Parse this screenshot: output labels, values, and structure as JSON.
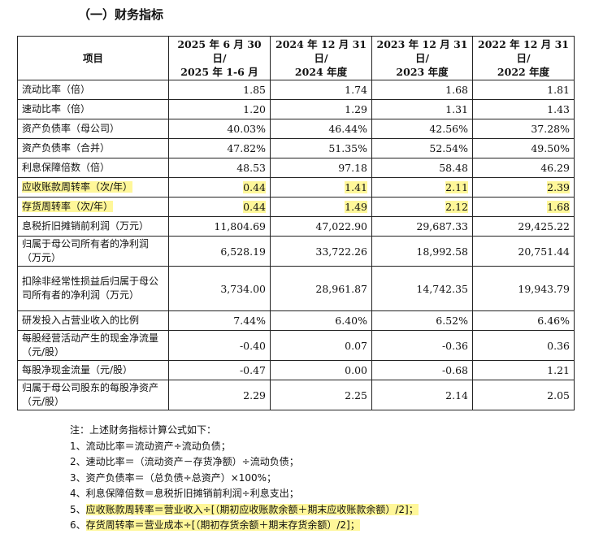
{
  "section_title": "（一）财务指标",
  "table": {
    "header": {
      "item": "项目",
      "periods": [
        {
          "line1": "2025 年 6 月 30 日/",
          "line2": "2025 年 1-6 月"
        },
        {
          "line1": "2024 年 12 月 31 日/",
          "line2": "2024 年度"
        },
        {
          "line1": "2023 年 12 月 31 日/",
          "line2": "2023 年度"
        },
        {
          "line1": "2022 年 12 月 31 日/",
          "line2": "2022 年度"
        }
      ]
    },
    "rows": [
      {
        "label": "流动比率（倍）",
        "values": [
          "1.85",
          "1.74",
          "1.68",
          "1.81"
        ],
        "highlight": false
      },
      {
        "label": "速动比率（倍）",
        "values": [
          "1.20",
          "1.29",
          "1.31",
          "1.43"
        ],
        "highlight": false
      },
      {
        "label": "资产负债率（母公司）",
        "values": [
          "40.03%",
          "46.44%",
          "42.56%",
          "37.28%"
        ],
        "highlight": false
      },
      {
        "label": "资产负债率（合并）",
        "values": [
          "47.82%",
          "51.35%",
          "52.54%",
          "49.50%"
        ],
        "highlight": false
      },
      {
        "label": "利息保障倍数（倍）",
        "values": [
          "48.53",
          "97.18",
          "58.48",
          "46.29"
        ],
        "highlight": false
      },
      {
        "label": "应收账款周转率（次/年）",
        "values": [
          "0.44",
          "1.41",
          "2.11",
          "2.39"
        ],
        "highlight": true
      },
      {
        "label": "存货周转率（次/年）",
        "values": [
          "0.44",
          "1.49",
          "2.12",
          "1.68"
        ],
        "highlight": true
      },
      {
        "label": "息税折旧摊销前利润（万元）",
        "values": [
          "11,804.69",
          "47,022.90",
          "29,687.33",
          "29,425.22"
        ],
        "highlight": false
      },
      {
        "label": "归属于母公司所有者的净利润（万元）",
        "values": [
          "6,528.19",
          "33,722.26",
          "18,992.58",
          "20,751.44"
        ],
        "highlight": false
      },
      {
        "label": "扣除非经常性损益后归属于母公司所有者的净利润（万元）",
        "values": [
          "3,734.00",
          "28,961.87",
          "14,742.35",
          "19,943.79"
        ],
        "highlight": false
      },
      {
        "label": "研发投入占营业收入的比例",
        "values": [
          "7.44%",
          "6.40%",
          "6.52%",
          "6.46%"
        ],
        "highlight": false
      },
      {
        "label": "每股经营活动产生的现金净流量（元/股）",
        "values": [
          "-0.40",
          "0.07",
          "-0.36",
          "0.36"
        ],
        "highlight": false
      },
      {
        "label": "每股净现金流量（元/股）",
        "values": [
          "-0.47",
          "0.00",
          "-0.68",
          "1.21"
        ],
        "highlight": false
      },
      {
        "label": "归属于母公司股东的每股净资产（元/股）",
        "values": [
          "2.29",
          "2.25",
          "2.14",
          "2.05"
        ],
        "highlight": false
      }
    ]
  },
  "notes": {
    "intro": "注：上述财务指标计算公式如下：",
    "items": [
      {
        "num": "1、",
        "text": "流动比率＝流动资产÷流动负债；",
        "highlight": false
      },
      {
        "num": "2、",
        "text": "速动比率＝（流动资产－存货净额）÷流动负债；",
        "highlight": false
      },
      {
        "num": "3、",
        "text": "资产负债率＝（总负债÷总资产）×100%；",
        "highlight": false
      },
      {
        "num": "4、",
        "text": "利息保障倍数＝息税折旧摊销前利润÷利息支出；",
        "highlight": false
      },
      {
        "num": "5、",
        "text": "应收账款周转率＝营业收入÷[（期初应收账款余额＋期末应收账款余额）/2]；",
        "highlight": true
      },
      {
        "num": "6、",
        "text": "存货周转率＝营业成本÷[（期初存货余额＋期末存货余额）/2]；",
        "highlight": true
      }
    ]
  }
}
